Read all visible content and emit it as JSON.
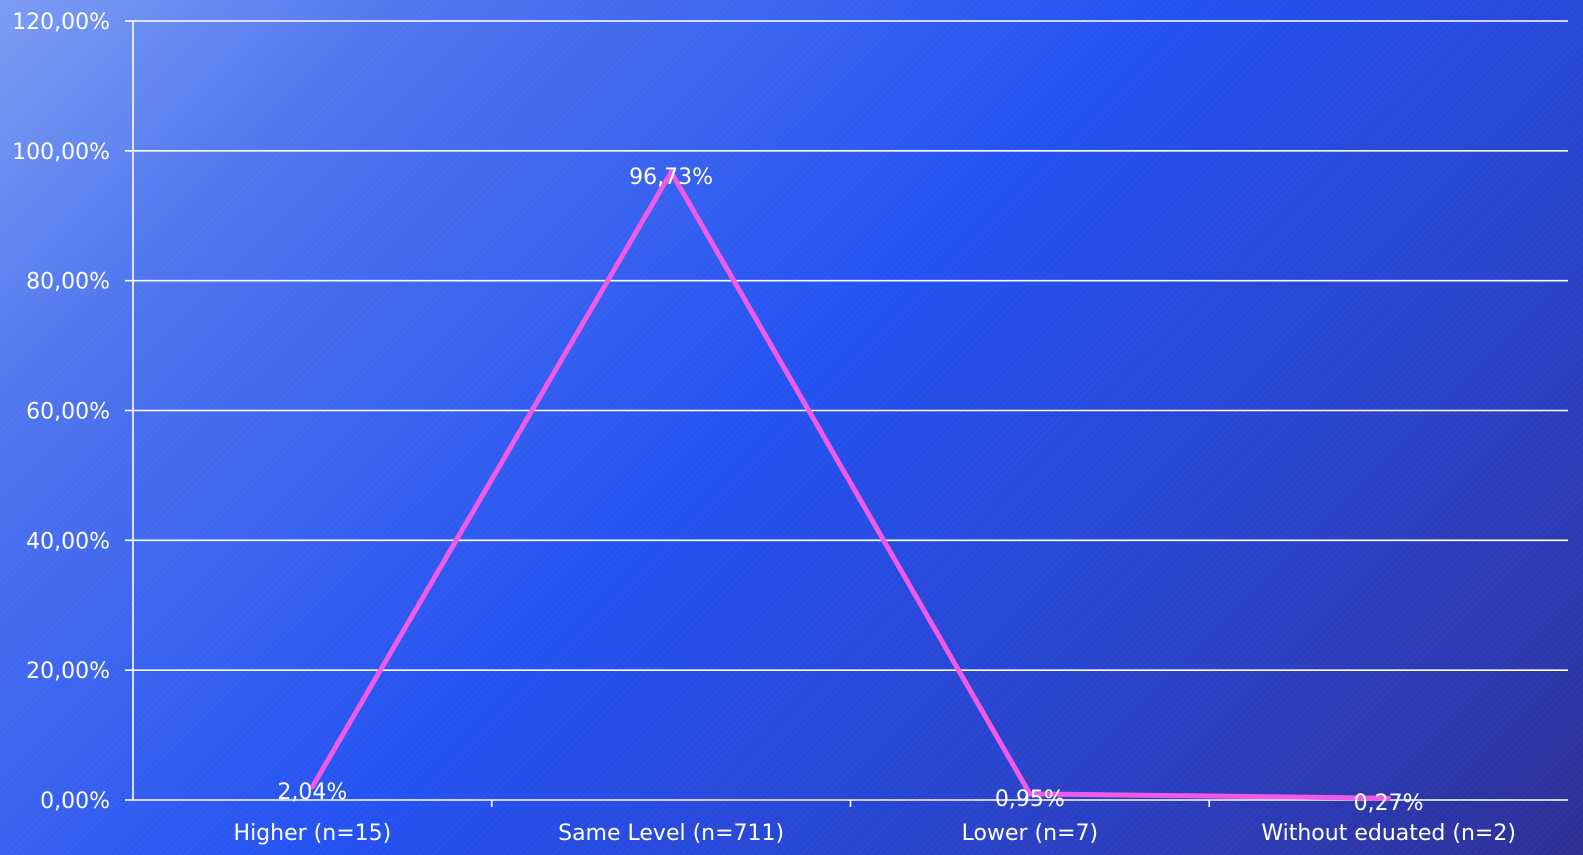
{
  "chart_data": {
    "type": "line",
    "title": "",
    "xlabel": "",
    "ylabel": "",
    "categories": [
      "Higher (n=15)",
      "Same Level (n=711)",
      "Lower (n=7)",
      "Without eduated (n=2)"
    ],
    "series": [
      {
        "values": [
          2.04,
          96.73,
          0.95,
          0.27
        ],
        "data_labels": [
          "2,04%",
          "96,73%",
          "0,95%",
          "0,27%"
        ],
        "color": "#f15ae6"
      }
    ],
    "ylim": [
      0,
      120
    ],
    "y_ticks": [
      {
        "value": 0,
        "label": "0,00%"
      },
      {
        "value": 20,
        "label": "20,00%"
      },
      {
        "value": 40,
        "label": "40,00%"
      },
      {
        "value": 60,
        "label": "60,00%"
      },
      {
        "value": 80,
        "label": "80,00%"
      },
      {
        "value": 100,
        "label": "100,00%"
      },
      {
        "value": 120,
        "label": "120,00%"
      }
    ],
    "grid": true,
    "legend": "none",
    "colors": {
      "gridline": "#ffffff",
      "text": "#ffffff",
      "line": "#f15ae6"
    }
  }
}
